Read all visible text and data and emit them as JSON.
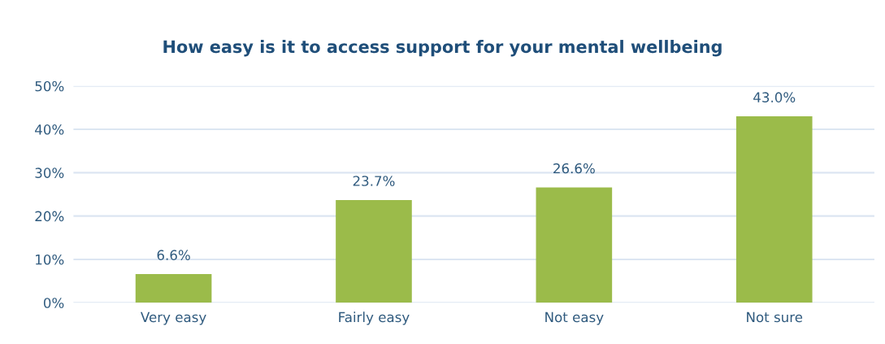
{
  "chart_data": {
    "type": "bar",
    "title": "How easy is it to access support for your mental wellbeing",
    "categories": [
      "Very easy",
      "Fairly easy",
      "Not easy",
      "Not sure"
    ],
    "values": [
      6.6,
      23.7,
      26.6,
      43.0
    ],
    "color": "#9bbb4a",
    "value_labels": [
      "6.6%",
      "23.7%",
      "26.6%",
      "43.0%"
    ],
    "ylim": [
      0,
      50
    ],
    "yticks": [
      {
        "value": 0,
        "label": "0%"
      },
      {
        "value": 10,
        "label": "10%"
      },
      {
        "value": 20,
        "label": "20%"
      },
      {
        "value": 30,
        "label": "30%"
      },
      {
        "value": 40,
        "label": "40%"
      },
      {
        "value": 50,
        "label": "50%"
      }
    ],
    "grid": "y",
    "legend": false
  }
}
